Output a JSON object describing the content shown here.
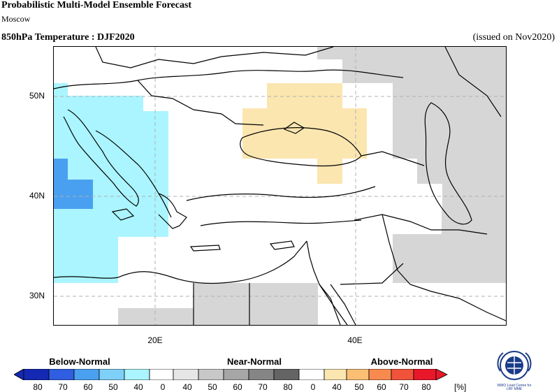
{
  "header": {
    "title": "Probabilistic Multi-Model Ensemble Forecast",
    "subtitle": "Moscow",
    "field": "850hPa Temperature : DJF2020",
    "issued": "(issued on Nov2020)"
  },
  "map": {
    "lat_labels": [
      "50N",
      "40N",
      "30N"
    ],
    "lon_labels": [
      "20E",
      "40E"
    ],
    "grid": "dashed",
    "regions": {
      "below_normal": "Italy, Adriatic, central Mediterranean, Libya coast",
      "above_normal": "Ukraine, Black Sea, southern Russia",
      "near_normal": "Egypt, Caspian region, Iran, northern Russia"
    }
  },
  "legend": {
    "categories": [
      "Below-Normal",
      "Near-Normal",
      "Above-Normal"
    ],
    "ticks": [
      "80",
      "70",
      "60",
      "50",
      "40",
      "0",
      "40",
      "50",
      "60",
      "70",
      "80",
      "0",
      "40",
      "50",
      "60",
      "70",
      "80"
    ],
    "unit": "[%]",
    "colors": {
      "below": [
        "#1428b4",
        "#2f5ee0",
        "#4aa0f0",
        "#7fd0f8",
        "#aaf5ff"
      ],
      "near": [
        "#e6e6e6",
        "#c8c8c8",
        "#a6a6a6",
        "#858585",
        "#646464"
      ],
      "above": [
        "#fbe6b0",
        "#fbbf74",
        "#f88a4f",
        "#f0533a",
        "#e8182a"
      ]
    }
  },
  "logo": {
    "text_line1": "WMO Lead Centre for",
    "text_line2": "LRF MME"
  }
}
